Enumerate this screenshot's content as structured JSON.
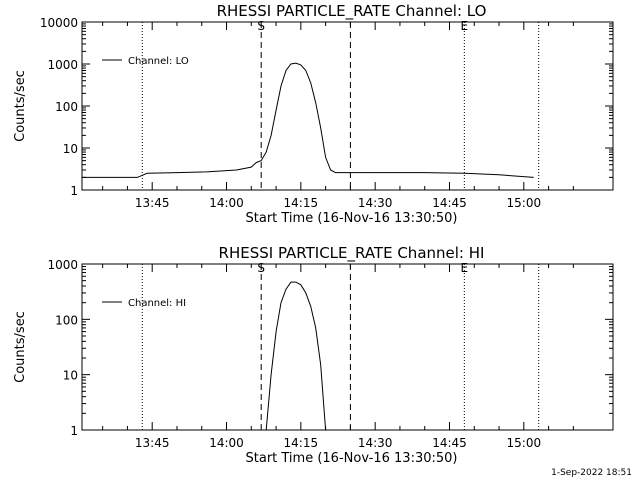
{
  "chart_data": [
    {
      "type": "line",
      "title": "RHESSI PARTICLE_RATE Channel: LO",
      "xlabel": "Start Time (16-Nov-16 13:30:50)",
      "ylabel": "Counts/sec",
      "yscale": "log",
      "ylim": [
        1,
        10000
      ],
      "yticks": [
        {
          "v": 1,
          "label": "1"
        },
        {
          "v": 10,
          "label": "10"
        },
        {
          "v": 100,
          "label": "100"
        },
        {
          "v": 1000,
          "label": "1000"
        },
        {
          "v": 10000,
          "label": "10000"
        }
      ],
      "xlim": [
        "13:30:50",
        "15:18:00"
      ],
      "xticks": [
        {
          "t": "13:45",
          "label": "13:45"
        },
        {
          "t": "14:00",
          "label": "14:00"
        },
        {
          "t": "14:15",
          "label": "14:15"
        },
        {
          "t": "14:30",
          "label": "14:30"
        },
        {
          "t": "14:45",
          "label": "14:45"
        },
        {
          "t": "15:00",
          "label": "15:00"
        }
      ],
      "legend": {
        "position": "top-left",
        "label": "Channel: LO"
      },
      "markers": [
        {
          "t": "14:07",
          "style": "dashed",
          "label": "S"
        },
        {
          "t": "14:25",
          "style": "dashed",
          "label": ""
        },
        {
          "t": "13:43",
          "style": "dotted",
          "label": ""
        },
        {
          "t": "14:48",
          "style": "dotted",
          "label": "E"
        },
        {
          "t": "15:03",
          "style": "dotted",
          "label": ""
        }
      ],
      "series": [
        {
          "points": [
            [
              "13:30:50",
              2
            ],
            [
              "13:36",
              2
            ],
            [
              "13:42",
              2
            ],
            [
              "13:44",
              2.5
            ],
            [
              "13:50",
              2.6
            ],
            [
              "13:56",
              2.7
            ],
            [
              "14:02",
              3
            ],
            [
              "14:05",
              3.5
            ],
            [
              "14:06",
              4.5
            ],
            [
              "14:07",
              5
            ],
            [
              "14:08",
              8
            ],
            [
              "14:09",
              20
            ],
            [
              "14:10",
              80
            ],
            [
              "14:11",
              300
            ],
            [
              "14:12",
              700
            ],
            [
              "14:13",
              1000
            ],
            [
              "14:14",
              1050
            ],
            [
              "14:15",
              950
            ],
            [
              "14:16",
              700
            ],
            [
              "14:17",
              350
            ],
            [
              "14:18",
              120
            ],
            [
              "14:19",
              30
            ],
            [
              "14:20",
              6
            ],
            [
              "14:21",
              3
            ],
            [
              "14:22",
              2.6
            ],
            [
              "14:30",
              2.6
            ],
            [
              "14:40",
              2.6
            ],
            [
              "14:48",
              2.5
            ],
            [
              "14:55",
              2.3
            ],
            [
              "15:02",
              2
            ]
          ]
        }
      ]
    },
    {
      "type": "line",
      "title": "RHESSI PARTICLE_RATE Channel: HI",
      "xlabel": "Start Time (16-Nov-16 13:30:50)",
      "ylabel": "Counts/sec",
      "yscale": "log",
      "ylim": [
        1,
        1000
      ],
      "yticks": [
        {
          "v": 1,
          "label": "1"
        },
        {
          "v": 10,
          "label": "10"
        },
        {
          "v": 100,
          "label": "100"
        },
        {
          "v": 1000,
          "label": "1000"
        }
      ],
      "xlim": [
        "13:30:50",
        "15:18:00"
      ],
      "xticks": [
        {
          "t": "13:45",
          "label": "13:45"
        },
        {
          "t": "14:00",
          "label": "14:00"
        },
        {
          "t": "14:15",
          "label": "14:15"
        },
        {
          "t": "14:30",
          "label": "14:30"
        },
        {
          "t": "14:45",
          "label": "14:45"
        },
        {
          "t": "15:00",
          "label": "15:00"
        }
      ],
      "legend": {
        "position": "top-left",
        "label": "Channel: HI"
      },
      "markers": [
        {
          "t": "14:07",
          "style": "dashed",
          "label": "S"
        },
        {
          "t": "14:25",
          "style": "dashed",
          "label": ""
        },
        {
          "t": "13:43",
          "style": "dotted",
          "label": ""
        },
        {
          "t": "14:48",
          "style": "dotted",
          "label": "E"
        },
        {
          "t": "15:03",
          "style": "dotted",
          "label": ""
        }
      ],
      "series": [
        {
          "points": [
            [
              "14:08",
              1
            ],
            [
              "14:09",
              10
            ],
            [
              "14:10",
              60
            ],
            [
              "14:11",
              200
            ],
            [
              "14:12",
              350
            ],
            [
              "14:13",
              470
            ],
            [
              "14:14",
              470
            ],
            [
              "14:15",
              420
            ],
            [
              "14:16",
              300
            ],
            [
              "14:17",
              170
            ],
            [
              "14:18",
              70
            ],
            [
              "14:19",
              15
            ],
            [
              "14:20",
              1
            ]
          ]
        }
      ]
    }
  ],
  "timestamp": "1-Sep-2022 18:51"
}
